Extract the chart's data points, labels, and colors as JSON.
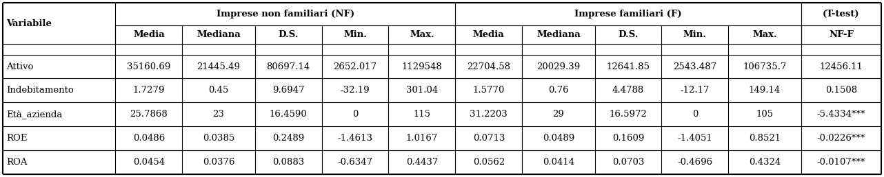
{
  "col_headers_row1": [
    "Variabile",
    "Imprese non familiari (NF)",
    "(T-test)"
  ],
  "col_headers_row2": [
    "",
    "Media",
    "Mediana",
    "D.S.",
    "Min.",
    "Max.",
    "Media",
    "Mediana",
    "D.S.",
    "Min.",
    "Max.",
    "NF-F"
  ],
  "rows": [
    [
      "Attivo",
      "35160.69",
      "21445.49",
      "80697.14",
      "2652.017",
      "1129548",
      "22704.58",
      "20029.39",
      "12641.85",
      "2543.487",
      "106735.7",
      "12456.11"
    ],
    [
      "Indebitamento",
      "1.7279",
      "0.45",
      "9.6947",
      "-32.19",
      "301.04",
      "1.5770",
      "0.76",
      "4.4788",
      "-12.17",
      "149.14",
      "0.1508"
    ],
    [
      "Età_azienda",
      "25.7868",
      "23",
      "16.4590",
      "0",
      "115",
      "31.2203",
      "29",
      "16.5972",
      "0",
      "105",
      "-5.4334***"
    ],
    [
      "ROE",
      "0.0486",
      "0.0385",
      "0.2489",
      "-1.4613",
      "1.0167",
      "0.0713",
      "0.0489",
      "0.1609",
      "-1.4051",
      "0.8521",
      "-0.0226***"
    ],
    [
      "ROA",
      "0.0454",
      "0.0376",
      "0.0883",
      "-0.6347",
      "0.4437",
      "0.0562",
      "0.0414",
      "0.0703",
      "-0.4696",
      "0.4324",
      "-0.0107***"
    ]
  ],
  "fig_width": 12.82,
  "fig_height": 2.58,
  "dpi": 100,
  "font_size": 9.5,
  "background_color": "#ffffff"
}
